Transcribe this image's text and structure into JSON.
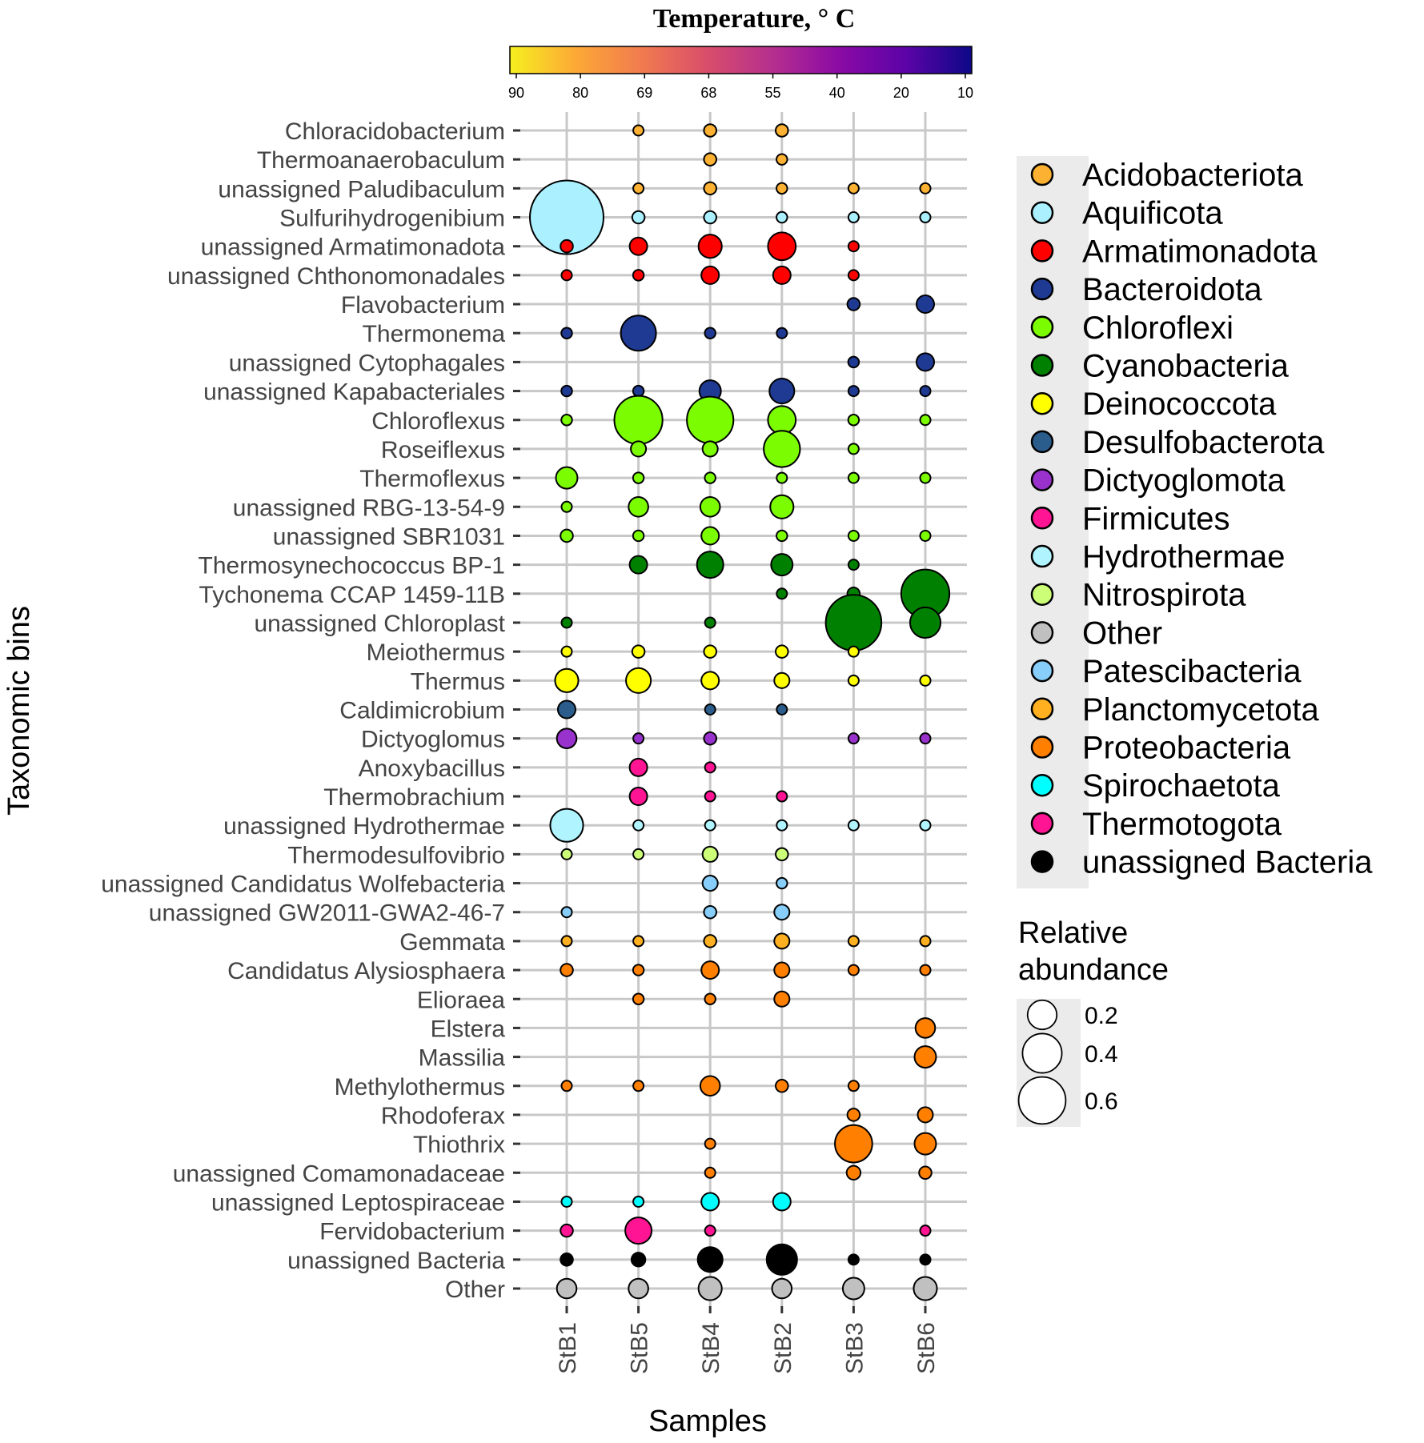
{
  "chart_data": {
    "type": "scatter",
    "title": "",
    "xlabel": "Samples",
    "ylabel": "Taxonomic bins",
    "samples": [
      "StB1",
      "StB5",
      "StB4",
      "StB2",
      "StB3",
      "StB6"
    ],
    "colorbar": {
      "title": "Temperature, ° C",
      "ticks": [
        "90",
        "80",
        "69",
        "68",
        "55",
        "40",
        "20",
        "10"
      ],
      "stops": [
        "#f6f01f",
        "#fca836",
        "#f17b4f",
        "#d84d6b",
        "#b42e8f",
        "#8a0aa5",
        "#5c03a7",
        "#0d0887"
      ]
    },
    "phyla": [
      {
        "name": "Acidobacteriota",
        "color": "#fcb132"
      },
      {
        "name": "Aquificota",
        "color": "#aaf0ff"
      },
      {
        "name": "Armatimonadota",
        "color": "#ff0000"
      },
      {
        "name": "Bacteroidota",
        "color": "#1f3a93"
      },
      {
        "name": "Chloroflexi",
        "color": "#7cfc00"
      },
      {
        "name": "Cyanobacteria",
        "color": "#008000"
      },
      {
        "name": "Deinococcota",
        "color": "#ffff00"
      },
      {
        "name": "Desulfobacterota",
        "color": "#2b5d8c"
      },
      {
        "name": "Dictyoglomota",
        "color": "#9932cc"
      },
      {
        "name": "Firmicutes",
        "color": "#ff1493"
      },
      {
        "name": "Hydrothermae",
        "color": "#b0f4ff"
      },
      {
        "name": "Nitrospirota",
        "color": "#ccff77"
      },
      {
        "name": "Other",
        "color": "#c0c0c0"
      },
      {
        "name": "Patescibacteria",
        "color": "#87cefa"
      },
      {
        "name": "Planctomycetota",
        "color": "#ffb020"
      },
      {
        "name": "Proteobacteria",
        "color": "#ff7f00"
      },
      {
        "name": "Spirochaetota",
        "color": "#00ffff"
      },
      {
        "name": "Thermotogota",
        "color": "#ff1493"
      },
      {
        "name": "unassigned Bacteria",
        "color": "#000000"
      }
    ],
    "size_legend": {
      "title": "Relative abundance",
      "values": [
        0.2,
        0.4,
        0.6
      ],
      "labels": [
        "0.2",
        "0.4",
        "0.6"
      ]
    },
    "bins": [
      {
        "name": "Chloracidobacterium",
        "phylum": "Acidobacteriota",
        "values": [
          0,
          0.01,
          0.02,
          0.02,
          0,
          0
        ]
      },
      {
        "name": "Thermoanaerobaculum",
        "phylum": "Acidobacteriota",
        "values": [
          0,
          0,
          0.02,
          0.015,
          0,
          0
        ]
      },
      {
        "name": "unassigned Paludibaculum",
        "phylum": "Acidobacteriota",
        "values": [
          0,
          0.01,
          0.02,
          0.015,
          0.01,
          0.01
        ]
      },
      {
        "name": "Sulfurihydrogenibium",
        "phylum": "Aquificota",
        "values": [
          0.7,
          0.02,
          0.02,
          0.015,
          0.01,
          0.01
        ]
      },
      {
        "name": "unassigned Armatimonadota",
        "phylum": "Armatimonadota",
        "values": [
          0.02,
          0.04,
          0.07,
          0.1,
          0.01,
          0
        ]
      },
      {
        "name": "unassigned Chthonomonadales",
        "phylum": "Armatimonadota",
        "values": [
          0.01,
          0.015,
          0.04,
          0.04,
          0.01,
          0
        ]
      },
      {
        "name": "Flavobacterium",
        "phylum": "Bacteroidota",
        "values": [
          0,
          0,
          0,
          0,
          0.02,
          0.04
        ]
      },
      {
        "name": "Thermonema",
        "phylum": "Bacteroidota",
        "values": [
          0.015,
          0.16,
          0.015,
          0.01,
          0,
          0
        ]
      },
      {
        "name": "unassigned Cytophagales",
        "phylum": "Bacteroidota",
        "values": [
          0,
          0,
          0,
          0,
          0.015,
          0.04
        ]
      },
      {
        "name": "unassigned Kapabacteriales",
        "phylum": "Bacteroidota",
        "values": [
          0.015,
          0.015,
          0.06,
          0.08,
          0.01,
          0.01
        ]
      },
      {
        "name": "Chloroflexus",
        "phylum": "Chloroflexi",
        "values": [
          0.015,
          0.3,
          0.28,
          0.1,
          0.015,
          0.01
        ]
      },
      {
        "name": "Roseiflexus",
        "phylum": "Chloroflexi",
        "values": [
          0,
          0.03,
          0.03,
          0.17,
          0.01,
          0
        ]
      },
      {
        "name": "Thermoflexus",
        "phylum": "Chloroflexi",
        "values": [
          0.06,
          0.015,
          0.015,
          0.01,
          0.01,
          0.01
        ]
      },
      {
        "name": "unassigned RBG-13-54-9",
        "phylum": "Chloroflexi",
        "values": [
          0.01,
          0.05,
          0.05,
          0.07,
          0,
          0
        ]
      },
      {
        "name": "unassigned SBR1031",
        "phylum": "Chloroflexi",
        "values": [
          0.02,
          0.015,
          0.04,
          0.015,
          0.01,
          0.01
        ]
      },
      {
        "name": "Thermosynechococcus BP-1",
        "phylum": "Cyanobacteria",
        "values": [
          0,
          0.04,
          0.09,
          0.06,
          0.01,
          0
        ]
      },
      {
        "name": "Tychonema CCAP 1459-11B",
        "phylum": "Cyanobacteria",
        "values": [
          0,
          0,
          0,
          0.01,
          0.02,
          0.3
        ]
      },
      {
        "name": "unassigned Chloroplast",
        "phylum": "Cyanobacteria",
        "values": [
          0.01,
          0,
          0.01,
          0,
          0.4,
          0.12
        ]
      },
      {
        "name": "Meiothermus",
        "phylum": "Deinococcota",
        "values": [
          0.01,
          0.02,
          0.02,
          0.02,
          0.01,
          0
        ]
      },
      {
        "name": "Thermus",
        "phylum": "Deinococcota",
        "values": [
          0.07,
          0.08,
          0.04,
          0.03,
          0.01,
          0.01
        ]
      },
      {
        "name": "Caldimicrobium",
        "phylum": "Desulfobacterota",
        "values": [
          0.04,
          0,
          0.01,
          0.01,
          0,
          0
        ]
      },
      {
        "name": "Dictyoglomus",
        "phylum": "Dictyoglomota",
        "values": [
          0.05,
          0.01,
          0.02,
          0,
          0.01,
          0.01
        ]
      },
      {
        "name": "Anoxybacillus",
        "phylum": "Firmicutes",
        "values": [
          0,
          0.04,
          0.01,
          0,
          0,
          0
        ]
      },
      {
        "name": "Thermobrachium",
        "phylum": "Firmicutes",
        "values": [
          0,
          0.04,
          0.01,
          0.01,
          0,
          0
        ]
      },
      {
        "name": "unassigned Hydrothermae",
        "phylum": "Hydrothermae",
        "values": [
          0.14,
          0.01,
          0.01,
          0.01,
          0.01,
          0.01
        ]
      },
      {
        "name": "Thermodesulfovibrio",
        "phylum": "Nitrospirota",
        "values": [
          0.01,
          0.01,
          0.03,
          0.02,
          0,
          0
        ]
      },
      {
        "name": "unassigned Candidatus Wolfebacteria",
        "phylum": "Patescibacteria",
        "values": [
          0,
          0,
          0.03,
          0.015,
          0,
          0
        ]
      },
      {
        "name": "unassigned GW2011-GWA2-46-7",
        "phylum": "Patescibacteria",
        "values": [
          0.01,
          0,
          0.02,
          0.03,
          0,
          0
        ]
      },
      {
        "name": "Gemmata",
        "phylum": "Planctomycetota",
        "values": [
          0.01,
          0.01,
          0.02,
          0.03,
          0.01,
          0.01
        ]
      },
      {
        "name": "Candidatus Alysiosphaera",
        "phylum": "Proteobacteria",
        "values": [
          0.02,
          0.015,
          0.04,
          0.03,
          0.01,
          0.01
        ]
      },
      {
        "name": "Elioraea",
        "phylum": "Proteobacteria",
        "values": [
          0,
          0.015,
          0.015,
          0.03,
          0,
          0
        ]
      },
      {
        "name": "Elstera",
        "phylum": "Proteobacteria",
        "values": [
          0,
          0,
          0,
          0,
          0,
          0.05
        ]
      },
      {
        "name": "Massilia",
        "phylum": "Proteobacteria",
        "values": [
          0,
          0,
          0,
          0,
          0,
          0.06
        ]
      },
      {
        "name": "Methylothermus",
        "phylum": "Proteobacteria",
        "values": [
          0.01,
          0.01,
          0.05,
          0.02,
          0.01,
          0
        ]
      },
      {
        "name": "Rhodoferax",
        "phylum": "Proteobacteria",
        "values": [
          0,
          0,
          0,
          0,
          0.02,
          0.03
        ]
      },
      {
        "name": "Thiothrix",
        "phylum": "Proteobacteria",
        "values": [
          0,
          0,
          0.01,
          0,
          0.18,
          0.06
        ]
      },
      {
        "name": "unassigned Comamonadaceae",
        "phylum": "Proteobacteria",
        "values": [
          0,
          0,
          0.01,
          0,
          0.025,
          0.02
        ]
      },
      {
        "name": "unassigned Leptospiraceae",
        "phylum": "Spirochaetota",
        "values": [
          0.01,
          0.01,
          0.04,
          0.04,
          0,
          0
        ]
      },
      {
        "name": "Fervidobacterium",
        "phylum": "Thermotogota",
        "values": [
          0.02,
          0.09,
          0.01,
          0,
          0,
          0.01
        ]
      },
      {
        "name": "unassigned Bacteria",
        "phylum": "unassigned Bacteria",
        "values": [
          0.02,
          0.025,
          0.08,
          0.12,
          0.01,
          0.01
        ]
      },
      {
        "name": "Other",
        "phylum": "Other",
        "values": [
          0.05,
          0.05,
          0.07,
          0.05,
          0.06,
          0.07
        ]
      }
    ]
  }
}
